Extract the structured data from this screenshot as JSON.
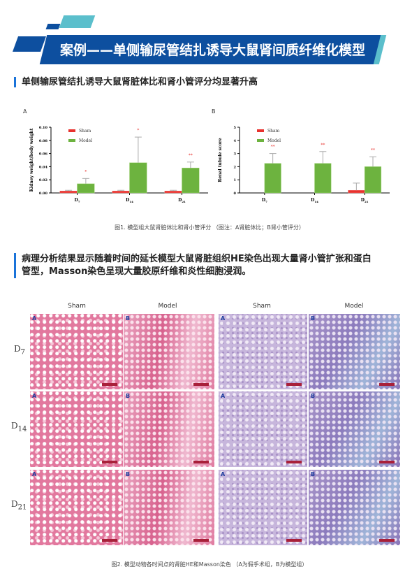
{
  "header": {
    "title": "案例——单侧输尿管结扎诱导大鼠肾间质纤维化模型"
  },
  "section1": {
    "heading": "单侧输尿管结扎诱导大鼠肾脏体比和肾小管评分均显著升高"
  },
  "figure1": {
    "caption": "图1. 模型组大鼠肾脏体比和肾小管评分 （图注：A肾脏体比；B肾小管评分）"
  },
  "chart_data": [
    {
      "type": "bar",
      "panel_label": "A",
      "ylabel": "Kidney weight/body weight",
      "categories": [
        "D7",
        "D14",
        "D21"
      ],
      "ylim": [
        0,
        0.1
      ],
      "yticks": [
        "0.00",
        "0.02",
        "0.04",
        "0.06",
        "0.08",
        "0.10"
      ],
      "legend": "top-left",
      "series": [
        {
          "name": "Sham",
          "color": "#e8322e",
          "values": [
            0.003,
            0.003,
            0.003
          ],
          "errors": [
            0.001,
            0.001,
            0.001
          ],
          "sig": [
            "",
            "",
            ""
          ]
        },
        {
          "name": "Model",
          "color": "#6db33f",
          "values": [
            0.014,
            0.046,
            0.038
          ],
          "errors": [
            0.008,
            0.039,
            0.009
          ],
          "sig": [
            "*",
            "*",
            "**"
          ]
        }
      ]
    },
    {
      "type": "bar",
      "panel_label": "B",
      "ylabel": "Renal tubule score",
      "categories": [
        "D7",
        "D14",
        "D21"
      ],
      "ylim": [
        0,
        5
      ],
      "yticks": [
        "0",
        "1",
        "2",
        "3",
        "4",
        "5"
      ],
      "legend": "top-left",
      "series": [
        {
          "name": "Sham",
          "color": "#e8322e",
          "values": [
            0,
            0,
            0.2
          ],
          "errors": [
            0,
            0,
            0.55
          ],
          "sig": [
            "",
            "",
            ""
          ]
        },
        {
          "name": "Model",
          "color": "#6db33f",
          "values": [
            2.25,
            2.25,
            2.0
          ],
          "errors": [
            0.75,
            0.9,
            0.75
          ],
          "sig": [
            "**",
            "**",
            "**"
          ]
        }
      ]
    }
  ],
  "section2": {
    "heading_line1": "病理分析结果显示随着时间的延长模型大鼠肾脏组织HE染色出现大量肾小管扩张和蛋白",
    "heading_line2": "管型，Masson染色呈现大量胶原纤维和炎性细胞浸润。"
  },
  "figure2": {
    "columns": [
      "Sham",
      "Model",
      "Sham",
      "Model"
    ],
    "rows": [
      {
        "main": "D",
        "sub": "7"
      },
      {
        "main": "D",
        "sub": "14"
      },
      {
        "main": "D",
        "sub": "21"
      }
    ],
    "panel_labels": [
      "A",
      "B"
    ],
    "caption": "图2. 模型动物各时间点的肾脏HE和Masson染色 （A为假手术组，B为模型组）"
  }
}
